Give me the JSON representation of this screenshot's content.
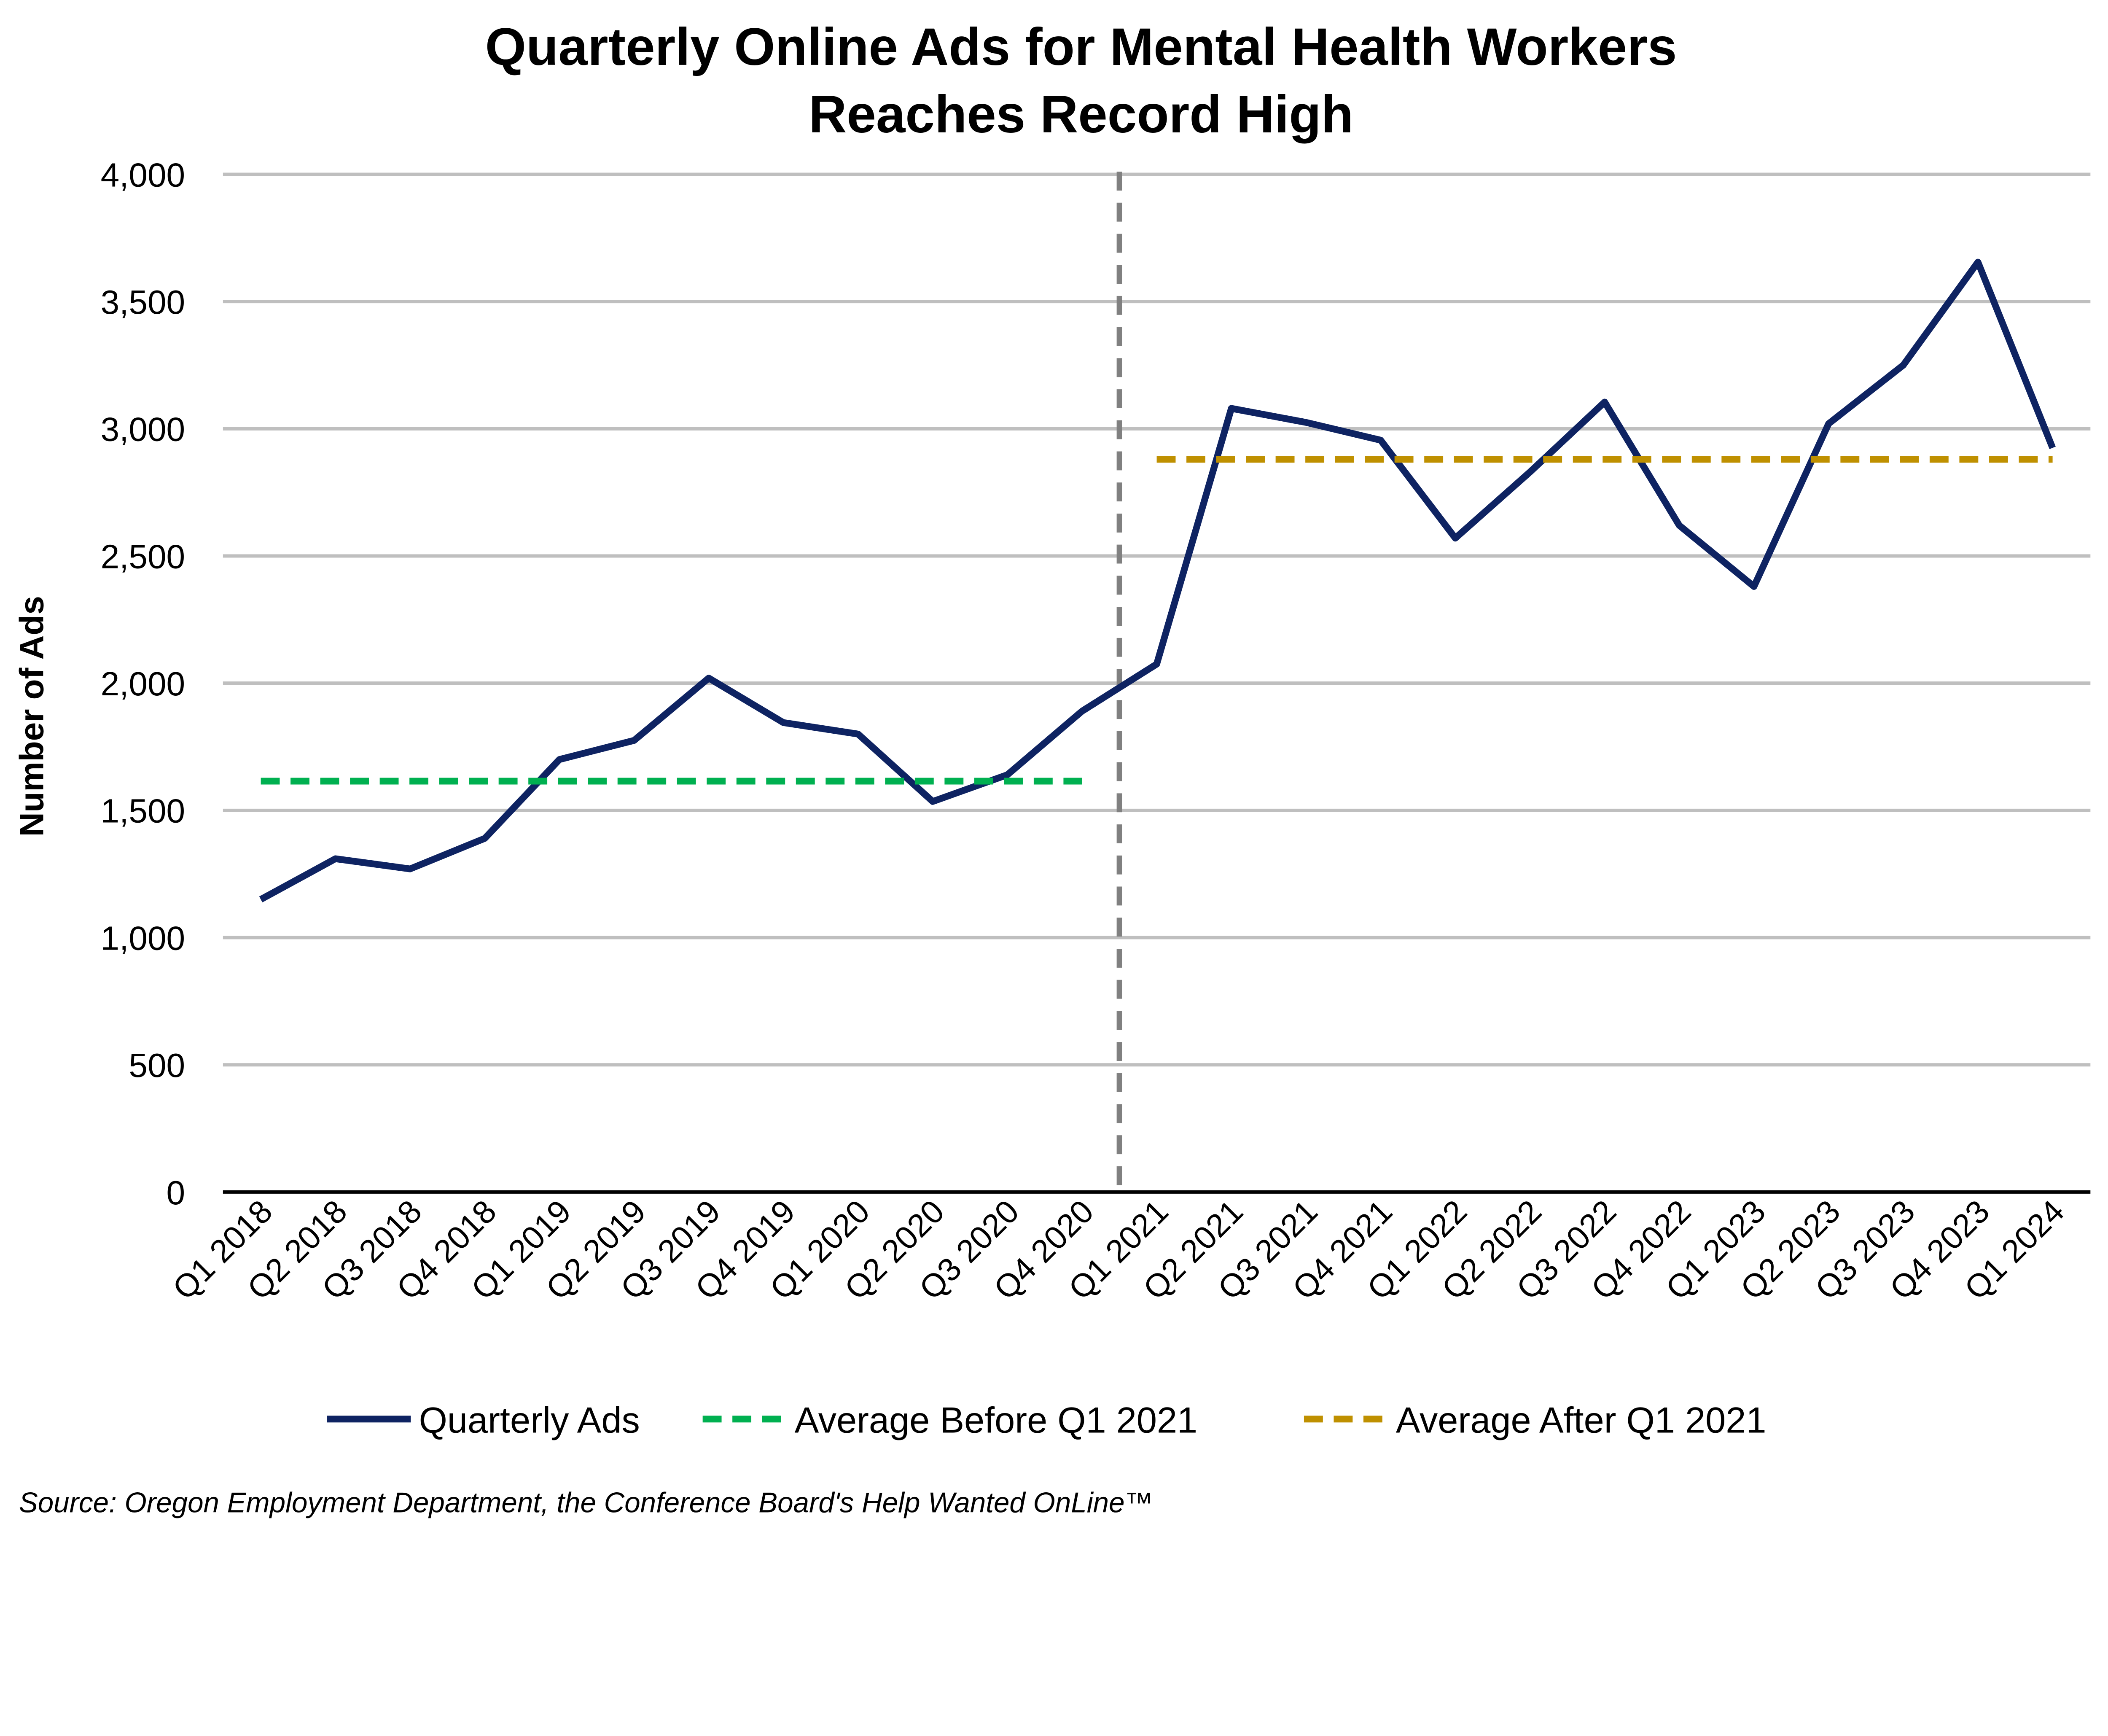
{
  "chart_data": {
    "type": "line",
    "title_lines": [
      "Quarterly Online Ads for Mental Health Workers",
      "Reaches Record High"
    ],
    "ylabel": "Number of Ads",
    "xlabel": "",
    "ylim": [
      0,
      4000
    ],
    "yticks": [
      0,
      500,
      1000,
      1500,
      2000,
      2500,
      3000,
      3500,
      4000
    ],
    "ytick_labels": [
      "0",
      "500",
      "1,000",
      "1,500",
      "2,000",
      "2,500",
      "3,000",
      "3,500",
      "4,000"
    ],
    "grid": "horizontal",
    "legend_position": "bottom",
    "categories": [
      "Q1 2018",
      "Q2 2018",
      "Q3 2018",
      "Q4 2018",
      "Q1 2019",
      "Q2 2019",
      "Q3 2019",
      "Q4 2019",
      "Q1 2020",
      "Q2 2020",
      "Q3 2020",
      "Q4 2020",
      "Q1 2021",
      "Q2 2021",
      "Q3 2021",
      "Q4 2021",
      "Q1 2022",
      "Q2 2022",
      "Q3 2022",
      "Q4 2022",
      "Q1 2023",
      "Q2 2023",
      "Q3 2023",
      "Q4 2023",
      "Q1 2024"
    ],
    "series": [
      {
        "name": "Quarterly Ads",
        "color": "#0E2362",
        "style": "solid",
        "values": [
          1150,
          1310,
          1270,
          1390,
          1700,
          1775,
          2020,
          1845,
          1800,
          1535,
          1640,
          1890,
          2075,
          3080,
          3025,
          2955,
          2570,
          2830,
          3105,
          2620,
          2380,
          3020,
          3250,
          3655,
          2925
        ]
      },
      {
        "name": "Average Before Q1 2021",
        "color": "#00B050",
        "style": "dashed",
        "value": 1615,
        "range": [
          "Q1 2018",
          "Q4 2020"
        ]
      },
      {
        "name": "Average After Q1 2021",
        "color": "#BF9000",
        "style": "dashed",
        "value": 2880,
        "range": [
          "Q1 2021",
          "Q1 2024"
        ]
      }
    ],
    "divider": {
      "between": [
        "Q4 2020",
        "Q1 2021"
      ],
      "color": "#808080",
      "style": "dashed"
    },
    "source": "Source: Oregon Employment Department, the Conference Board's Help Wanted OnLine™"
  }
}
